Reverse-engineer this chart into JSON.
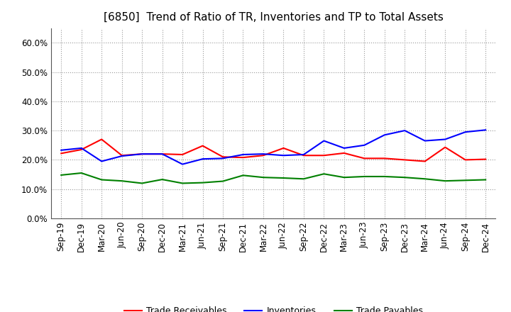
{
  "title": "[6850]  Trend of Ratio of TR, Inventories and TP to Total Assets",
  "x_labels": [
    "Sep-19",
    "Dec-19",
    "Mar-20",
    "Jun-20",
    "Sep-20",
    "Dec-20",
    "Mar-21",
    "Jun-21",
    "Sep-21",
    "Dec-21",
    "Mar-22",
    "Jun-22",
    "Sep-22",
    "Dec-22",
    "Mar-23",
    "Jun-23",
    "Sep-23",
    "Dec-23",
    "Mar-24",
    "Jun-24",
    "Sep-24",
    "Dec-24"
  ],
  "trade_receivables": [
    0.222,
    0.235,
    0.27,
    0.215,
    0.22,
    0.22,
    0.218,
    0.248,
    0.21,
    0.208,
    0.215,
    0.24,
    0.215,
    0.215,
    0.223,
    0.205,
    0.205,
    0.2,
    0.195,
    0.243,
    0.2,
    0.202
  ],
  "inventories": [
    0.233,
    0.24,
    0.195,
    0.213,
    0.22,
    0.22,
    0.185,
    0.203,
    0.205,
    0.218,
    0.22,
    0.215,
    0.218,
    0.265,
    0.24,
    0.25,
    0.285,
    0.3,
    0.265,
    0.27,
    0.295,
    0.302
  ],
  "trade_payables": [
    0.148,
    0.155,
    0.132,
    0.128,
    0.12,
    0.133,
    0.12,
    0.122,
    0.127,
    0.147,
    0.14,
    0.138,
    0.135,
    0.152,
    0.14,
    0.143,
    0.143,
    0.14,
    0.135,
    0.128,
    0.13,
    0.132
  ],
  "tr_color": "#ff0000",
  "inv_color": "#0000ff",
  "tp_color": "#008000",
  "ylim": [
    0.0,
    0.65
  ],
  "yticks": [
    0.0,
    0.1,
    0.2,
    0.3,
    0.4,
    0.5,
    0.6
  ],
  "background_color": "#ffffff",
  "grid_color": "#999999",
  "title_fontsize": 11,
  "tick_fontsize": 8.5,
  "legend_fontsize": 9
}
